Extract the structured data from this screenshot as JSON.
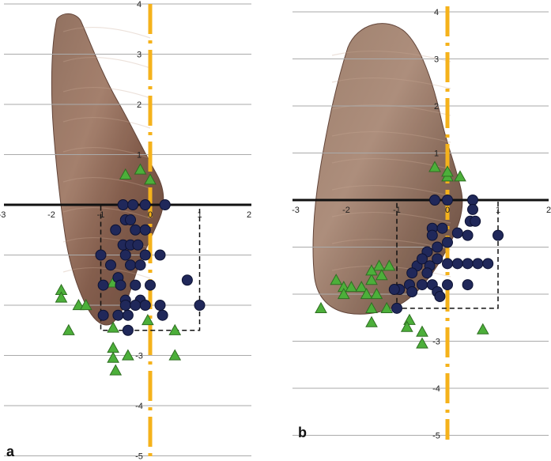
{
  "chart_data": [
    {
      "type": "scatter",
      "panel_label": "a",
      "xlim": [
        -3,
        2
      ],
      "ylim": [
        -5,
        4
      ],
      "x_ticks": [
        "-3",
        "-2",
        "-1",
        "0",
        "1",
        "2"
      ],
      "y_ticks": [
        "4",
        "3",
        "2",
        "1",
        "-3",
        "-4",
        "-5"
      ],
      "grid": "horizontal",
      "background": "photo of muscle specimen",
      "reference_box": {
        "x": [
          -1,
          1
        ],
        "y": [
          -2.5,
          0
        ]
      },
      "series": [
        {
          "marker": "triangle",
          "color": "#4caf3a",
          "points": [
            [
              -0.5,
              0.6
            ],
            [
              -0.2,
              0.7
            ],
            [
              0,
              0.5
            ],
            [
              -1.8,
              -1.7
            ],
            [
              -1.8,
              -1.85
            ],
            [
              -1.45,
              -2
            ],
            [
              -1.3,
              -2
            ],
            [
              -1.65,
              -2.5
            ],
            [
              -0.75,
              -1.55
            ],
            [
              -0.75,
              -2.45
            ],
            [
              -0.75,
              -2.85
            ],
            [
              -0.75,
              -3.05
            ],
            [
              -0.45,
              -3
            ],
            [
              -0.7,
              -3.3
            ],
            [
              0.5,
              -2.5
            ],
            [
              0.5,
              -3
            ],
            [
              -0.05,
              -2.3
            ]
          ]
        },
        {
          "marker": "circle",
          "color": "#20285a",
          "points": [
            [
              -0.55,
              0
            ],
            [
              -0.35,
              0
            ],
            [
              -0.1,
              0
            ],
            [
              0.3,
              0
            ],
            [
              -0.5,
              -0.3
            ],
            [
              -0.4,
              -0.3
            ],
            [
              -0.7,
              -0.5
            ],
            [
              -0.3,
              -0.5
            ],
            [
              -0.1,
              -0.5
            ],
            [
              -0.55,
              -0.8
            ],
            [
              -0.4,
              -0.8
            ],
            [
              -0.25,
              -0.8
            ],
            [
              -0.5,
              -1
            ],
            [
              -0.1,
              -1
            ],
            [
              -1,
              -1
            ],
            [
              -0.8,
              -1.2
            ],
            [
              -0.4,
              -1.2
            ],
            [
              -0.2,
              -1.2
            ],
            [
              0.2,
              -1
            ],
            [
              -0.65,
              -1.45
            ],
            [
              -0.95,
              -1.6
            ],
            [
              -0.6,
              -1.6
            ],
            [
              -0.3,
              -1.6
            ],
            [
              0,
              -1.6
            ],
            [
              -0.5,
              -1.9
            ],
            [
              -0.2,
              -1.9
            ],
            [
              -0.5,
              -2
            ],
            [
              -0.3,
              -2
            ],
            [
              -0.1,
              -2
            ],
            [
              0.2,
              -2
            ],
            [
              -0.95,
              -2.2
            ],
            [
              -0.65,
              -2.2
            ],
            [
              -0.45,
              -2.2
            ],
            [
              0.25,
              -2.2
            ],
            [
              -0.45,
              -2.5
            ],
            [
              0.75,
              -1.5
            ],
            [
              1,
              -2
            ]
          ]
        }
      ]
    },
    {
      "type": "scatter",
      "panel_label": "b",
      "xlim": [
        -3,
        2
      ],
      "ylim": [
        -5,
        4
      ],
      "x_ticks": [
        "-3",
        "-2",
        "-1",
        "0",
        "1",
        "2"
      ],
      "y_ticks": [
        "4",
        "3",
        "2",
        "1",
        "-3",
        "-4",
        "-5"
      ],
      "grid": "horizontal",
      "background": "photo of muscle specimen",
      "reference_box": {
        "x": [
          -1,
          1
        ],
        "y": [
          -2.3,
          0
        ]
      },
      "series": [
        {
          "marker": "triangle",
          "color": "#4caf3a",
          "points": [
            [
              -0.25,
              0.7
            ],
            [
              0,
              0.5
            ],
            [
              0.25,
              0.5
            ],
            [
              0,
              0.6
            ],
            [
              -2.2,
              -1.7
            ],
            [
              -2.05,
              -1.85
            ],
            [
              -1.9,
              -1.85
            ],
            [
              -1.7,
              -1.85
            ],
            [
              -2.05,
              -2
            ],
            [
              -1.6,
              -2
            ],
            [
              -1.5,
              -1.7
            ],
            [
              -1.35,
              -1.4
            ],
            [
              -1.3,
              -1.6
            ],
            [
              -1.5,
              -1.5
            ],
            [
              -1.15,
              -1.4
            ],
            [
              -1.4,
              -2.0
            ],
            [
              -1.5,
              -2.3
            ],
            [
              -1.2,
              -2.3
            ],
            [
              -2.5,
              -2.3
            ],
            [
              -1.5,
              -2.6
            ],
            [
              -0.75,
              -2.55
            ],
            [
              -0.8,
              -2.7
            ],
            [
              -0.5,
              -2.8
            ],
            [
              -0.5,
              -3.05
            ],
            [
              0.7,
              -2.75
            ]
          ]
        },
        {
          "marker": "circle",
          "color": "#20285a",
          "points": [
            [
              -0.25,
              0
            ],
            [
              0,
              0
            ],
            [
              0.5,
              0
            ],
            [
              0.5,
              -0.2
            ],
            [
              0.45,
              -0.45
            ],
            [
              0.55,
              -0.45
            ],
            [
              -0.3,
              -0.6
            ],
            [
              -0.1,
              -0.6
            ],
            [
              -0.3,
              -0.75
            ],
            [
              -0.2,
              -1
            ],
            [
              0,
              -0.9
            ],
            [
              -0.4,
              -1.1
            ],
            [
              -0.2,
              -1.25
            ],
            [
              -0.35,
              -1.4
            ],
            [
              -0.6,
              -1.4
            ],
            [
              -0.4,
              -1.55
            ],
            [
              -0.7,
              -1.55
            ],
            [
              -0.75,
              -1.8
            ],
            [
              -0.95,
              -1.9
            ],
            [
              -0.7,
              -1.95
            ],
            [
              -0.5,
              -1.8
            ],
            [
              -0.3,
              -1.8
            ],
            [
              -0.2,
              -1.95
            ],
            [
              0,
              -1.8
            ],
            [
              0,
              -1.35
            ],
            [
              0.2,
              -1.35
            ],
            [
              0.4,
              -1.35
            ],
            [
              0.6,
              -1.35
            ],
            [
              0.8,
              -1.35
            ],
            [
              0.4,
              -1.8
            ],
            [
              -0.15,
              -2.05
            ],
            [
              -1,
              -2.3
            ],
            [
              -1.05,
              -1.9
            ],
            [
              -0.5,
              -1.25
            ],
            [
              0.2,
              -0.7
            ],
            [
              0.4,
              -0.75
            ],
            [
              1,
              -0.75
            ]
          ]
        }
      ]
    }
  ],
  "colors": {
    "axis_line": "#111111",
    "grid": "#aaaaaa",
    "center_line": "#f5b21b",
    "box": "#111111",
    "triangle": "#4caf3a",
    "circle": "#20285a"
  }
}
